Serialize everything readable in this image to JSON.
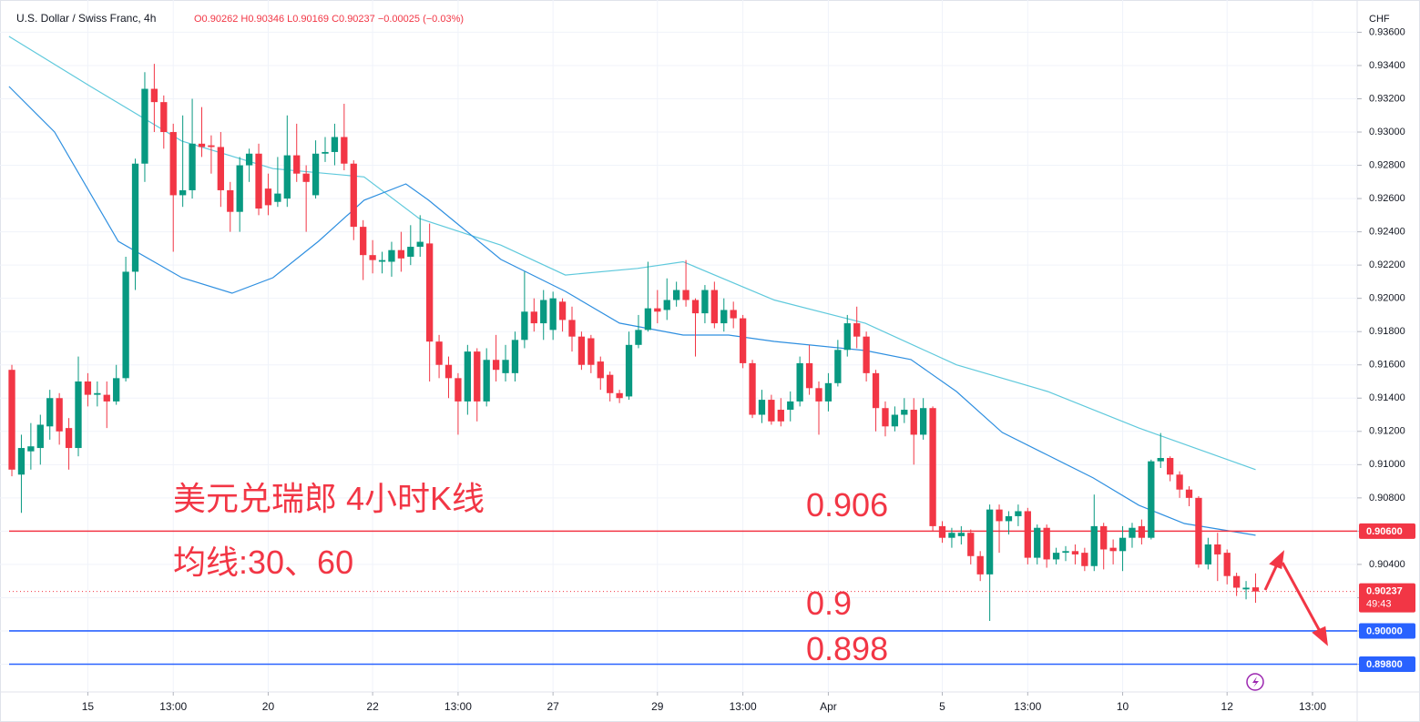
{
  "chart_data": {
    "type": "candlestick",
    "title": "U.S. Dollar / Swiss Franc, 4h",
    "ohlc_text": "O0.90262 H0.90346 L0.90169 C0.90237 −0.00025 (−0.03%)",
    "currency": "CHF",
    "up_color": "#089981",
    "down_color": "#f23645",
    "xlim": [
      -1.25,
      141.7
    ],
    "ylim": [
      0.89633,
      0.93794
    ],
    "xticks": [
      {
        "value": 8,
        "label": "15"
      },
      {
        "value": 17,
        "label": "13:00"
      },
      {
        "value": 27,
        "label": "20"
      },
      {
        "value": 38,
        "label": "22"
      },
      {
        "value": 47,
        "label": "13:00"
      },
      {
        "value": 57,
        "label": "27"
      },
      {
        "value": 68,
        "label": "29"
      },
      {
        "value": 77,
        "label": "13:00"
      },
      {
        "value": 86,
        "label": "Apr"
      },
      {
        "value": 98,
        "label": "5"
      },
      {
        "value": 107,
        "label": "13:00"
      },
      {
        "value": 117,
        "label": "10"
      },
      {
        "value": 128,
        "label": "12"
      },
      {
        "value": 137,
        "label": "13:00"
      }
    ],
    "yticks": [
      {
        "value": 0.898,
        "label": "0.89800"
      },
      {
        "value": 0.9,
        "label": "0.90000"
      },
      {
        "value": 0.902,
        "label": "0.90200"
      },
      {
        "value": 0.904,
        "label": "0.90400"
      },
      {
        "value": 0.906,
        "label": "0.90600"
      },
      {
        "value": 0.908,
        "label": "0.90800"
      },
      {
        "value": 0.91,
        "label": "0.91000"
      },
      {
        "value": 0.912,
        "label": "0.91200"
      },
      {
        "value": 0.914,
        "label": "0.91400"
      },
      {
        "value": 0.916,
        "label": "0.91600"
      },
      {
        "value": 0.918,
        "label": "0.91800"
      },
      {
        "value": 0.92,
        "label": "0.92000"
      },
      {
        "value": 0.922,
        "label": "0.92200"
      },
      {
        "value": 0.924,
        "label": "0.92400"
      },
      {
        "value": 0.926,
        "label": "0.92600"
      },
      {
        "value": 0.928,
        "label": "0.92800"
      },
      {
        "value": 0.93,
        "label": "0.93000"
      },
      {
        "value": 0.932,
        "label": "0.93200"
      },
      {
        "value": 0.934,
        "label": "0.93400"
      },
      {
        "value": 0.936,
        "label": "0.93600"
      }
    ],
    "candles": {
      "open": [
        0.9157,
        0.9094,
        0.9108,
        0.911,
        0.9123,
        0.914,
        0.9122,
        0.911,
        0.915,
        0.9142,
        0.9142,
        0.9138,
        0.9152,
        0.9216,
        0.9281,
        0.9326,
        0.9318,
        0.93,
        0.9262,
        0.9265,
        0.9293,
        0.9292,
        0.9291,
        0.9265,
        0.9252,
        0.928,
        0.9287,
        0.9266,
        0.9258,
        0.926,
        0.9286,
        0.9275,
        0.9262,
        0.9287,
        0.9288,
        0.9297,
        0.9281,
        0.9243,
        0.9226,
        0.9222,
        0.9222,
        0.9229,
        0.9225,
        0.9231,
        0.9233,
        0.9174,
        0.916,
        0.9152,
        0.9138,
        0.9168,
        0.9138,
        0.9163,
        0.9155,
        0.9155,
        0.9175,
        0.9192,
        0.9185,
        0.9181,
        0.9198,
        0.9187,
        0.9177,
        0.9176,
        0.9162,
        0.9154,
        0.9143,
        0.9141,
        0.9172,
        0.9181,
        0.9194,
        0.9193,
        0.9199,
        0.9205,
        0.9199,
        0.9191,
        0.9205,
        0.9185,
        0.9193,
        0.9188,
        0.9161,
        0.913,
        0.9139,
        0.9133,
        0.9133,
        0.9138,
        0.9161,
        0.9146,
        0.9138,
        0.9149,
        0.9169,
        0.9185,
        0.9177,
        0.9155,
        0.9134,
        0.9123,
        0.913,
        0.9133,
        0.9118,
        0.9134,
        0.9063,
        0.9056,
        0.9057,
        0.9059,
        0.9045,
        0.9034,
        0.9073,
        0.9066,
        0.9069,
        0.9072,
        0.9044,
        0.9062,
        0.9043,
        0.9047,
        0.9048,
        0.9047,
        0.9039,
        0.9063,
        0.905,
        0.9048,
        0.9056,
        0.9063,
        0.9056,
        0.9102,
        0.9104,
        0.9094,
        0.9085,
        0.908,
        0.904,
        0.9052,
        0.9047,
        0.9033,
        0.9025,
        0.90262
      ],
      "high": [
        0.916,
        0.9118,
        0.9125,
        0.913,
        0.9145,
        0.9143,
        0.9128,
        0.9165,
        0.9155,
        0.915,
        0.915,
        0.916,
        0.9225,
        0.9284,
        0.9336,
        0.9341,
        0.9322,
        0.9305,
        0.931,
        0.932,
        0.9315,
        0.9298,
        0.93,
        0.927,
        0.9285,
        0.929,
        0.9293,
        0.9275,
        0.9285,
        0.931,
        0.9305,
        0.928,
        0.9295,
        0.9297,
        0.9305,
        0.9317,
        0.9283,
        0.9247,
        0.9235,
        0.9228,
        0.9234,
        0.924,
        0.9244,
        0.925,
        0.9245,
        0.9178,
        0.9165,
        0.9155,
        0.9172,
        0.917,
        0.917,
        0.9178,
        0.9172,
        0.918,
        0.9216,
        0.92,
        0.9205,
        0.9204,
        0.92,
        0.9195,
        0.918,
        0.9178,
        0.9165,
        0.9156,
        0.9145,
        0.918,
        0.919,
        0.9222,
        0.9205,
        0.9212,
        0.921,
        0.9223,
        0.92,
        0.9208,
        0.921,
        0.92,
        0.9198,
        0.919,
        0.9163,
        0.9145,
        0.9142,
        0.914,
        0.9144,
        0.9165,
        0.9172,
        0.915,
        0.9155,
        0.9175,
        0.919,
        0.9195,
        0.918,
        0.9157,
        0.9138,
        0.9135,
        0.914,
        0.914,
        0.914,
        0.9135,
        0.9066,
        0.9062,
        0.9063,
        0.9061,
        0.9048,
        0.9076,
        0.9076,
        0.9072,
        0.9076,
        0.9074,
        0.9064,
        0.9064,
        0.905,
        0.9051,
        0.9052,
        0.905,
        0.9082,
        0.9065,
        0.9055,
        0.9063,
        0.9065,
        0.9067,
        0.9103,
        0.9119,
        0.9105,
        0.9096,
        0.9087,
        0.9081,
        0.9056,
        0.9059,
        0.9049,
        0.9035,
        0.903,
        0.90346
      ],
      "low": [
        0.9093,
        0.9071,
        0.9097,
        0.91,
        0.9115,
        0.9112,
        0.9097,
        0.9105,
        0.9135,
        0.9135,
        0.9122,
        0.9136,
        0.915,
        0.9205,
        0.927,
        0.93,
        0.929,
        0.9228,
        0.9255,
        0.926,
        0.9285,
        0.9275,
        0.9255,
        0.924,
        0.924,
        0.927,
        0.925,
        0.925,
        0.9255,
        0.9255,
        0.927,
        0.924,
        0.926,
        0.9282,
        0.928,
        0.9277,
        0.9235,
        0.9211,
        0.9215,
        0.9215,
        0.9213,
        0.9216,
        0.922,
        0.9225,
        0.915,
        0.9152,
        0.914,
        0.9118,
        0.913,
        0.9126,
        0.9135,
        0.915,
        0.915,
        0.915,
        0.917,
        0.918,
        0.9175,
        0.9175,
        0.918,
        0.9168,
        0.9157,
        0.9155,
        0.9145,
        0.9138,
        0.9137,
        0.9139,
        0.917,
        0.918,
        0.9185,
        0.9187,
        0.9195,
        0.9195,
        0.9165,
        0.9185,
        0.9182,
        0.918,
        0.9182,
        0.9158,
        0.9128,
        0.9125,
        0.9124,
        0.9123,
        0.9126,
        0.9135,
        0.9142,
        0.9118,
        0.9132,
        0.9147,
        0.9165,
        0.917,
        0.915,
        0.912,
        0.9117,
        0.912,
        0.9125,
        0.91,
        0.9115,
        0.906,
        0.9053,
        0.905,
        0.9052,
        0.904,
        0.903,
        0.9006,
        0.9047,
        0.9058,
        0.9063,
        0.904,
        0.904,
        0.9038,
        0.904,
        0.9042,
        0.904,
        0.9036,
        0.9036,
        0.9037,
        0.904,
        0.9036,
        0.905,
        0.9052,
        0.9055,
        0.9098,
        0.909,
        0.908,
        0.9075,
        0.9038,
        0.9037,
        0.903,
        0.9028,
        0.9021,
        0.9019,
        0.90169
      ],
      "close": [
        0.9097,
        0.911,
        0.9111,
        0.9124,
        0.914,
        0.912,
        0.911,
        0.915,
        0.9142,
        0.9143,
        0.9138,
        0.9152,
        0.9216,
        0.9281,
        0.9326,
        0.9318,
        0.93,
        0.9262,
        0.9265,
        0.9293,
        0.9291,
        0.9291,
        0.9265,
        0.9252,
        0.928,
        0.9287,
        0.9254,
        0.9256,
        0.9263,
        0.9286,
        0.9275,
        0.927,
        0.9287,
        0.9288,
        0.9297,
        0.9281,
        0.9243,
        0.9226,
        0.9223,
        0.9223,
        0.9229,
        0.9224,
        0.9231,
        0.9234,
        0.9174,
        0.916,
        0.9152,
        0.9138,
        0.9168,
        0.9138,
        0.9163,
        0.9157,
        0.9163,
        0.9175,
        0.9192,
        0.9185,
        0.9199,
        0.92,
        0.9187,
        0.9177,
        0.916,
        0.916,
        0.9152,
        0.9143,
        0.914,
        0.9172,
        0.9181,
        0.9194,
        0.9192,
        0.9199,
        0.9205,
        0.9199,
        0.9191,
        0.9205,
        0.9185,
        0.9193,
        0.9188,
        0.9161,
        0.913,
        0.9139,
        0.9126,
        0.9126,
        0.9138,
        0.9161,
        0.9146,
        0.9138,
        0.9149,
        0.9169,
        0.9185,
        0.9177,
        0.9155,
        0.9134,
        0.9123,
        0.913,
        0.9133,
        0.9118,
        0.9134,
        0.9063,
        0.9056,
        0.9059,
        0.9059,
        0.9045,
        0.9034,
        0.9073,
        0.9066,
        0.9069,
        0.9072,
        0.9044,
        0.9062,
        0.9043,
        0.9047,
        0.9048,
        0.9046,
        0.9039,
        0.9063,
        0.9049,
        0.9048,
        0.9056,
        0.9062,
        0.9056,
        0.9102,
        0.9104,
        0.9094,
        0.9085,
        0.908,
        0.904,
        0.9052,
        0.9046,
        0.9033,
        0.9026,
        0.9026,
        0.90237
      ]
    },
    "series": [
      {
        "color": "#5fc9dc",
        "x": [
          -0.3,
          8.3,
          17.9,
          27.5,
          37.1,
          42.9,
          51.5,
          58.3,
          65.9,
          70.7,
          80.3,
          89.9,
          99.5,
          109.1,
          118.7,
          131
        ],
        "values": [
          0.93575,
          0.93274,
          0.92946,
          0.9278,
          0.9273,
          0.9248,
          0.9232,
          0.9214,
          0.9218,
          0.9222,
          0.9199,
          0.9185,
          0.916,
          0.9144,
          0.9122,
          0.9097
        ]
      },
      {
        "color": "#2e8fe0",
        "x": [
          -0.3,
          4.5,
          11.2,
          17.9,
          23.2,
          27.5,
          32.3,
          37.1,
          41.5,
          43.9,
          51.5,
          58.3,
          64.0,
          70.7,
          75.5,
          80.3,
          89.9,
          94.7,
          99.5,
          104.3,
          109.1,
          113.9,
          118.7,
          123.5,
          131
        ],
        "values": [
          0.93274,
          0.93,
          0.92343,
          0.92124,
          0.92031,
          0.92124,
          0.92343,
          0.9259,
          0.92688,
          0.9259,
          0.92234,
          0.92042,
          0.91851,
          0.91779,
          0.91779,
          0.91741,
          0.91686,
          0.91632,
          0.9144,
          0.91194,
          0.91057,
          0.9092,
          0.90756,
          0.90646,
          0.90575
        ]
      }
    ],
    "levels": [
      {
        "value": 0.906,
        "label": "0.90600",
        "color": "#f23645"
      },
      {
        "value": 0.9,
        "label": "0.90000",
        "color": "#2962ff"
      },
      {
        "value": 0.898,
        "label": "0.89800",
        "color": "#2962ff"
      }
    ],
    "price_line": {
      "value": 0.90237,
      "label": "0.90237",
      "countdown": "49:43",
      "color": "#f23645"
    },
    "annotations": [
      "美元兑瑞郎 4小时K线",
      "均线:30、60",
      "0.906",
      "0.9",
      "0.898"
    ]
  }
}
